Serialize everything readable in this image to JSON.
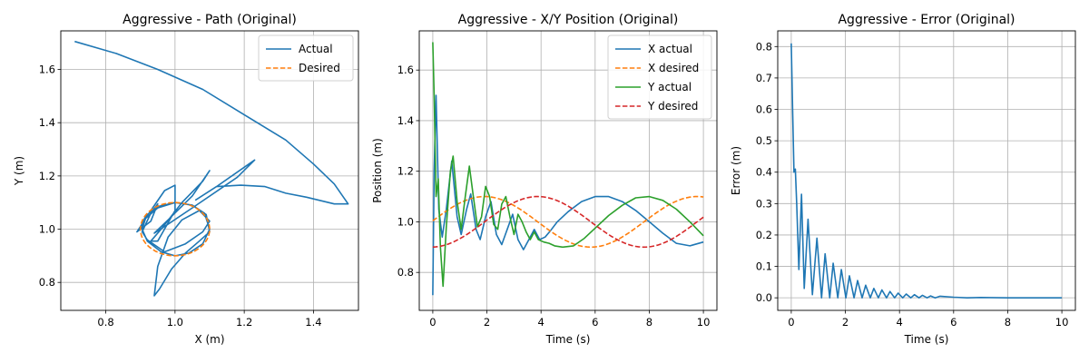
{
  "chart_data": [
    {
      "type": "line",
      "title": "Aggressive - Path (Original)",
      "xlabel": "X (m)",
      "ylabel": "Y (m)",
      "xlim": [
        0.67,
        1.53
      ],
      "ylim": [
        0.695,
        1.745
      ],
      "xticks": [
        0.8,
        1.0,
        1.2,
        1.4
      ],
      "xtick_labels": [
        "0.8",
        "1.0",
        "1.2",
        "1.4"
      ],
      "yticks": [
        0.8,
        1.0,
        1.2,
        1.4,
        1.6
      ],
      "ytick_labels": [
        "0.8",
        "1.0",
        "1.2",
        "1.4",
        "1.6"
      ],
      "grid": true,
      "legend": "top-right",
      "series": [
        {
          "name": "Actual",
          "color": "#1f77b4",
          "dash": "solid",
          "points": [
            [
              0.71,
              1.705
            ],
            [
              0.83,
              1.66
            ],
            [
              0.95,
              1.6
            ],
            [
              1.08,
              1.525
            ],
            [
              1.2,
              1.43
            ],
            [
              1.32,
              1.335
            ],
            [
              1.4,
              1.245
            ],
            [
              1.46,
              1.17
            ],
            [
              1.5,
              1.095
            ],
            [
              1.46,
              1.095
            ],
            [
              1.38,
              1.12
            ],
            [
              1.32,
              1.135
            ],
            [
              1.26,
              1.16
            ],
            [
              1.19,
              1.165
            ],
            [
              1.12,
              1.16
            ],
            [
              1.06,
              1.11
            ],
            [
              1.12,
              1.16
            ],
            [
              1.23,
              1.26
            ],
            [
              1.18,
              1.195
            ],
            [
              1.05,
              1.08
            ],
            [
              0.97,
              1.01
            ],
            [
              0.94,
              0.985
            ],
            [
              0.98,
              1.035
            ],
            [
              1.05,
              1.125
            ],
            [
              1.1,
              1.22
            ],
            [
              1.08,
              1.18
            ],
            [
              1.02,
              1.1
            ],
            [
              0.96,
              1.0
            ],
            [
              0.93,
              0.955
            ],
            [
              0.95,
              0.955
            ],
            [
              1.0,
              1.07
            ],
            [
              1.0,
              1.165
            ],
            [
              0.97,
              1.145
            ],
            [
              0.93,
              1.07
            ],
            [
              0.89,
              0.99
            ],
            [
              0.93,
              1.03
            ],
            [
              0.95,
              1.095
            ],
            [
              0.93,
              1.06
            ],
            [
              0.905,
              0.99
            ],
            [
              0.92,
              0.96
            ],
            [
              0.97,
              0.915
            ],
            [
              1.03,
              0.945
            ],
            [
              1.08,
              0.99
            ],
            [
              1.1,
              1.03
            ],
            [
              1.07,
              1.07
            ],
            [
              1.02,
              1.035
            ],
            [
              0.98,
              0.97
            ],
            [
              0.95,
              0.86
            ],
            [
              0.94,
              0.75
            ],
            [
              0.955,
              0.775
            ],
            [
              0.99,
              0.85
            ],
            [
              1.03,
              0.91
            ],
            [
              1.07,
              0.955
            ],
            [
              1.1,
              0.99
            ],
            [
              1.09,
              1.055
            ],
            [
              1.05,
              1.09
            ],
            [
              1.0,
              1.1
            ],
            [
              0.95,
              1.08
            ],
            [
              0.915,
              1.04
            ],
            [
              0.905,
              1.0
            ],
            [
              0.92,
              0.955
            ],
            [
              0.96,
              0.915
            ],
            [
              1.0,
              0.9
            ],
            [
              1.04,
              0.91
            ],
            [
              1.08,
              0.945
            ],
            [
              1.1,
              1.0
            ],
            [
              1.085,
              1.06
            ],
            [
              1.05,
              1.09
            ],
            [
              1.0,
              1.1
            ],
            [
              0.95,
              1.085
            ],
            [
              0.915,
              1.05
            ],
            [
              0.9,
              1.0
            ]
          ]
        },
        {
          "name": "Desired",
          "color": "#ff7f0e",
          "dash": "dashed",
          "shape": "ellipse",
          "center": [
            1.0,
            1.0
          ],
          "radius": [
            0.1,
            0.1
          ]
        }
      ]
    },
    {
      "type": "line",
      "title": "Aggressive - X/Y Position (Original)",
      "xlabel": "Time (s)",
      "ylabel": "Position (m)",
      "xlim": [
        -0.5,
        10.5
      ],
      "ylim": [
        0.65,
        1.755
      ],
      "xticks": [
        0,
        2,
        4,
        6,
        8,
        10
      ],
      "xtick_labels": [
        "0",
        "2",
        "4",
        "6",
        "8",
        "10"
      ],
      "yticks": [
        0.8,
        1.0,
        1.2,
        1.4,
        1.6
      ],
      "ytick_labels": [
        "0.8",
        "1.0",
        "1.2",
        "1.4",
        "1.6"
      ],
      "grid": true,
      "legend": "top-right",
      "series": [
        {
          "name": "X actual",
          "color": "#1f77b4",
          "dash": "solid",
          "points": [
            [
              0,
              0.71
            ],
            [
              0.05,
              1.2
            ],
            [
              0.12,
              1.5
            ],
            [
              0.22,
              1.05
            ],
            [
              0.35,
              0.94
            ],
            [
              0.5,
              1.05
            ],
            [
              0.7,
              1.24
            ],
            [
              0.9,
              1.02
            ],
            [
              1.05,
              0.95
            ],
            [
              1.25,
              1.05
            ],
            [
              1.4,
              1.11
            ],
            [
              1.6,
              0.97
            ],
            [
              1.75,
              0.93
            ],
            [
              1.95,
              1.02
            ],
            [
              2.15,
              1.08
            ],
            [
              2.35,
              0.95
            ],
            [
              2.55,
              0.91
            ],
            [
              2.75,
              0.97
            ],
            [
              2.95,
              1.03
            ],
            [
              3.15,
              0.93
            ],
            [
              3.35,
              0.89
            ],
            [
              3.55,
              0.93
            ],
            [
              3.75,
              0.97
            ],
            [
              3.95,
              0.93
            ],
            [
              4.15,
              0.94
            ],
            [
              4.35,
              0.965
            ],
            [
              4.6,
              1.0
            ],
            [
              5.0,
              1.04
            ],
            [
              5.5,
              1.08
            ],
            [
              6.0,
              1.1
            ],
            [
              6.5,
              1.1
            ],
            [
              7.0,
              1.08
            ],
            [
              7.5,
              1.045
            ],
            [
              8.0,
              1.0
            ],
            [
              8.5,
              0.955
            ],
            [
              9.0,
              0.915
            ],
            [
              9.5,
              0.905
            ],
            [
              10.0,
              0.92
            ]
          ]
        },
        {
          "name": "X desired",
          "color": "#ff7f0e",
          "dash": "dashed",
          "func": "1+0.1*sin(0.8*(t+0.05))"
        },
        {
          "name": "Y actual",
          "color": "#2ca02c",
          "dash": "solid",
          "points": [
            [
              0,
              1.71
            ],
            [
              0.05,
              1.5
            ],
            [
              0.12,
              1.1
            ],
            [
              0.2,
              1.17
            ],
            [
              0.28,
              0.9
            ],
            [
              0.38,
              0.745
            ],
            [
              0.5,
              0.98
            ],
            [
              0.65,
              1.2
            ],
            [
              0.75,
              1.26
            ],
            [
              0.9,
              1.08
            ],
            [
              1.05,
              0.97
            ],
            [
              1.2,
              1.1
            ],
            [
              1.35,
              1.22
            ],
            [
              1.5,
              1.1
            ],
            [
              1.65,
              0.98
            ],
            [
              1.8,
              1.02
            ],
            [
              1.95,
              1.14
            ],
            [
              2.1,
              1.1
            ],
            [
              2.25,
              0.99
            ],
            [
              2.4,
              0.97
            ],
            [
              2.55,
              1.07
            ],
            [
              2.7,
              1.1
            ],
            [
              2.85,
              1.02
            ],
            [
              3.0,
              0.95
            ],
            [
              3.15,
              1.03
            ],
            [
              3.3,
              1.0
            ],
            [
              3.45,
              0.96
            ],
            [
              3.6,
              0.93
            ],
            [
              3.75,
              0.96
            ],
            [
              3.9,
              0.93
            ],
            [
              4.1,
              0.92
            ],
            [
              4.3,
              0.915
            ],
            [
              4.5,
              0.905
            ],
            [
              4.8,
              0.9
            ],
            [
              5.2,
              0.905
            ],
            [
              5.6,
              0.935
            ],
            [
              6.0,
              0.975
            ],
            [
              6.5,
              1.025
            ],
            [
              7.0,
              1.065
            ],
            [
              7.5,
              1.095
            ],
            [
              8.0,
              1.1
            ],
            [
              8.5,
              1.085
            ],
            [
              9.0,
              1.05
            ],
            [
              9.5,
              1.0
            ],
            [
              10.0,
              0.945
            ]
          ]
        },
        {
          "name": "Y desired",
          "color": "#d62728",
          "dash": "dashed",
          "func": "1-0.1*cos(0.8*(t+0.05))"
        }
      ]
    },
    {
      "type": "line",
      "title": "Aggressive - Error (Original)",
      "xlabel": "Time (s)",
      "ylabel": "Error (m)",
      "xlim": [
        -0.5,
        10.5
      ],
      "ylim": [
        -0.04,
        0.85
      ],
      "xticks": [
        0,
        2,
        4,
        6,
        8,
        10
      ],
      "xtick_labels": [
        "0",
        "2",
        "4",
        "6",
        "8",
        "10"
      ],
      "yticks": [
        0.0,
        0.1,
        0.2,
        0.3,
        0.4,
        0.5,
        0.6,
        0.7,
        0.8
      ],
      "ytick_labels": [
        "0.0",
        "0.1",
        "0.2",
        "0.3",
        "0.4",
        "0.5",
        "0.6",
        "0.7",
        "0.8"
      ],
      "grid": true,
      "legend": "none",
      "series": [
        {
          "name": "",
          "color": "#1f77b4",
          "dash": "solid",
          "points": [
            [
              0,
              0.81
            ],
            [
              0.05,
              0.6
            ],
            [
              0.1,
              0.4
            ],
            [
              0.15,
              0.41
            ],
            [
              0.2,
              0.3
            ],
            [
              0.28,
              0.09
            ],
            [
              0.38,
              0.33
            ],
            [
              0.48,
              0.03
            ],
            [
              0.62,
              0.25
            ],
            [
              0.78,
              0.01
            ],
            [
              0.95,
              0.19
            ],
            [
              1.12,
              0.0
            ],
            [
              1.25,
              0.14
            ],
            [
              1.42,
              0.0
            ],
            [
              1.55,
              0.11
            ],
            [
              1.72,
              0.0
            ],
            [
              1.85,
              0.09
            ],
            [
              2.02,
              0.0
            ],
            [
              2.15,
              0.07
            ],
            [
              2.32,
              0.0
            ],
            [
              2.45,
              0.055
            ],
            [
              2.62,
              0.0
            ],
            [
              2.75,
              0.04
            ],
            [
              2.92,
              0.0
            ],
            [
              3.05,
              0.03
            ],
            [
              3.22,
              0.0
            ],
            [
              3.35,
              0.025
            ],
            [
              3.52,
              0.0
            ],
            [
              3.65,
              0.02
            ],
            [
              3.82,
              0.0
            ],
            [
              3.95,
              0.015
            ],
            [
              4.12,
              0.0
            ],
            [
              4.25,
              0.012
            ],
            [
              4.42,
              0.0
            ],
            [
              4.55,
              0.01
            ],
            [
              4.72,
              0.0
            ],
            [
              4.85,
              0.008
            ],
            [
              5.02,
              0.0
            ],
            [
              5.15,
              0.006
            ],
            [
              5.32,
              0.0
            ],
            [
              5.5,
              0.005
            ],
            [
              6.0,
              0.002
            ],
            [
              6.5,
              0.0
            ],
            [
              7.0,
              0.001
            ],
            [
              8.0,
              0.0
            ],
            [
              10.0,
              0.0
            ]
          ]
        }
      ]
    }
  ]
}
